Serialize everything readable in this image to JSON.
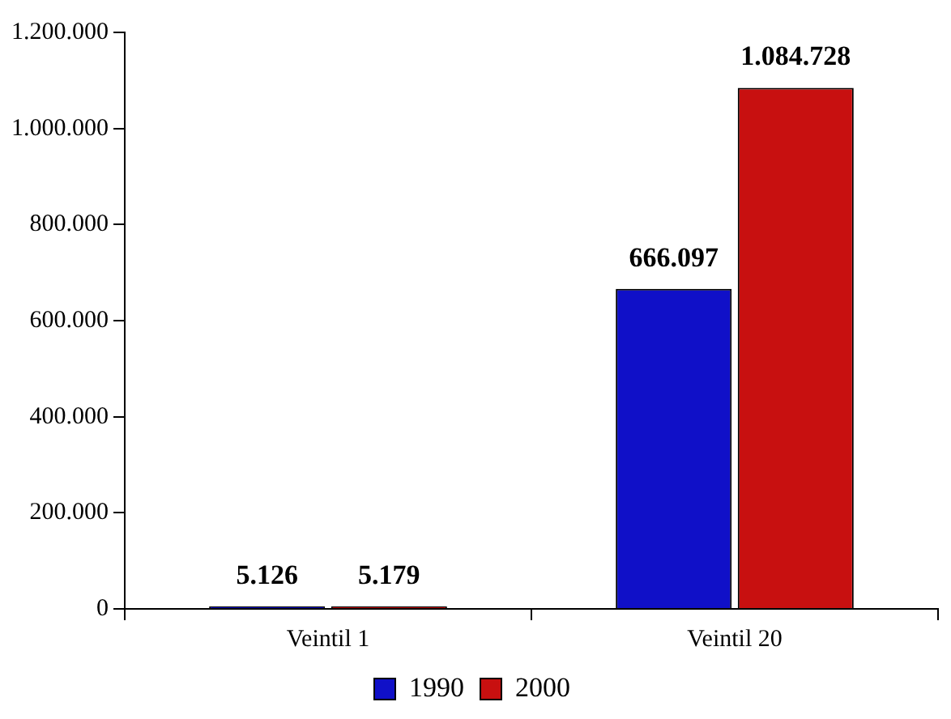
{
  "chart_data": {
    "type": "bar",
    "categories": [
      "Veintil 1",
      "Veintil 20"
    ],
    "series": [
      {
        "name": "1990",
        "color": "#1010c8",
        "values": [
          5126,
          666097
        ],
        "value_labels": [
          "5.126",
          "666.097"
        ]
      },
      {
        "name": "2000",
        "color": "#c81010",
        "values": [
          5179,
          1084728
        ],
        "value_labels": [
          "5.179",
          "1.084.728"
        ]
      }
    ],
    "ylim": [
      0,
      1200000
    ],
    "yticks": [
      0,
      {
        "value": 200000,
        "label": "200.000"
      },
      {
        "value": 400000,
        "label": "400.000"
      },
      {
        "value": 600000,
        "label": "600.000"
      },
      {
        "value": 800000,
        "label": "800.000"
      },
      {
        "value": 1000000,
        "label": "1.000.000"
      },
      {
        "value": 1200000,
        "label": "1.200.000"
      }
    ],
    "grid": false,
    "legend": "bottom"
  }
}
